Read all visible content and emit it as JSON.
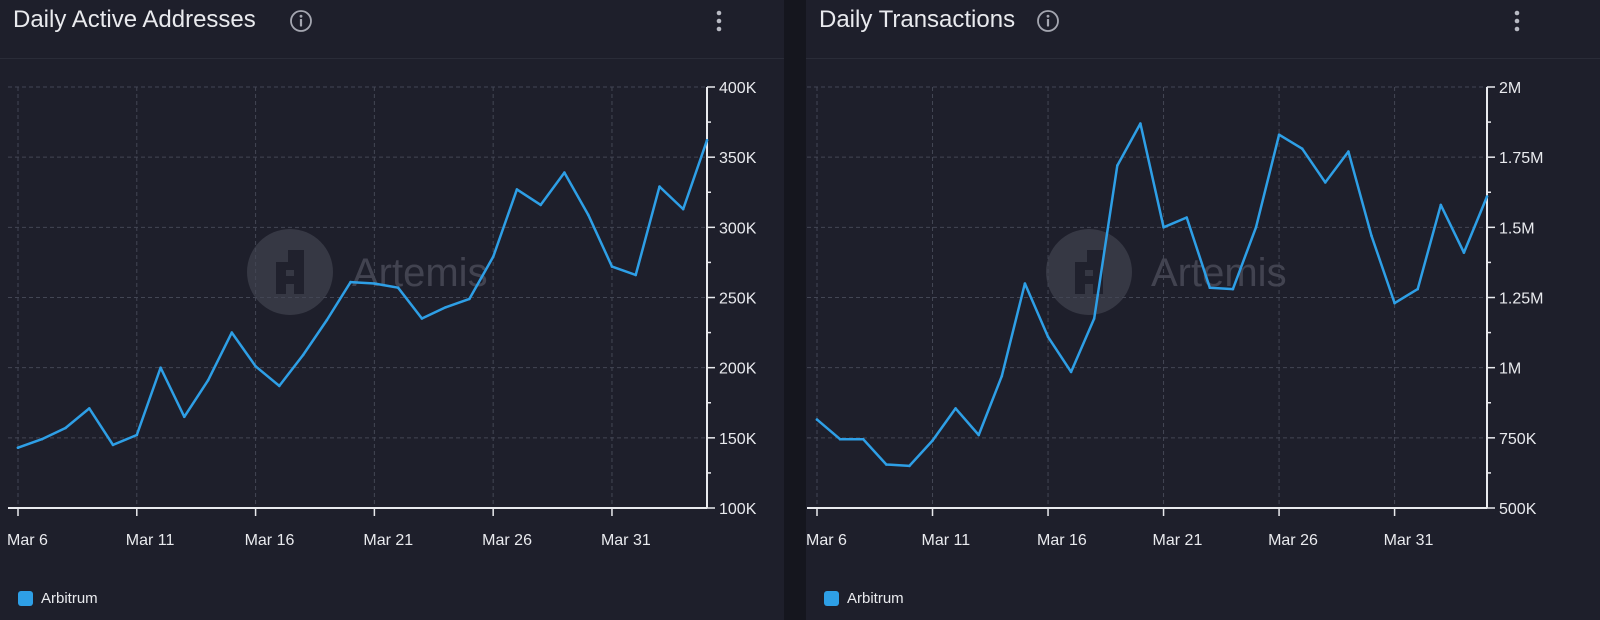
{
  "colors": {
    "series": "#2e9fe6",
    "grid": "#434654",
    "axis": "#e9eaee",
    "text": "#e9eaee",
    "watermark": "#4b4d5a"
  },
  "watermark_text": "Artemis",
  "panels": [
    {
      "title": "Daily Active Addresses",
      "info_icon": "info-icon",
      "menu_icon": "more-vertical-icon"
    },
    {
      "title": "Daily Transactions",
      "info_icon": "info-icon",
      "menu_icon": "more-vertical-icon"
    }
  ],
  "chart_data": [
    {
      "type": "line",
      "title": "Daily Active Addresses",
      "x": [
        "Mar 6",
        "Mar 7",
        "Mar 8",
        "Mar 9",
        "Mar 10",
        "Mar 11",
        "Mar 12",
        "Mar 13",
        "Mar 14",
        "Mar 15",
        "Mar 16",
        "Mar 17",
        "Mar 18",
        "Mar 19",
        "Mar 20",
        "Mar 21",
        "Mar 22",
        "Mar 23",
        "Mar 24",
        "Mar 25",
        "Mar 26",
        "Mar 27",
        "Mar 28",
        "Mar 29",
        "Mar 30",
        "Mar 31",
        "Apr 1",
        "Apr 2",
        "Apr 3",
        "Apr 4"
      ],
      "xticks": [
        "Mar 6",
        "Mar 11",
        "Mar 16",
        "Mar 21",
        "Mar 26",
        "Mar 31"
      ],
      "series": [
        {
          "name": "Arbitrum",
          "values": [
            143000,
            149000,
            157000,
            171000,
            145000,
            152000,
            200000,
            165000,
            191000,
            225000,
            201000,
            187000,
            209000,
            234000,
            261000,
            260000,
            257000,
            235000,
            243000,
            249000,
            279000,
            327000,
            316000,
            339000,
            309000,
            272000,
            266000,
            329000,
            313000,
            362000
          ]
        }
      ],
      "yticks": [
        "100K",
        "150K",
        "200K",
        "250K",
        "300K",
        "350K",
        "400K"
      ],
      "ytick_values": [
        100000,
        150000,
        200000,
        250000,
        300000,
        350000,
        400000
      ],
      "ylim": [
        100000,
        400000
      ],
      "grid": true,
      "legend": "bottom-left",
      "axis_side": "right"
    },
    {
      "type": "line",
      "title": "Daily Transactions",
      "x": [
        "Mar 6",
        "Mar 7",
        "Mar 8",
        "Mar 9",
        "Mar 10",
        "Mar 11",
        "Mar 12",
        "Mar 13",
        "Mar 14",
        "Mar 15",
        "Mar 16",
        "Mar 17",
        "Mar 18",
        "Mar 19",
        "Mar 20",
        "Mar 21",
        "Mar 22",
        "Mar 23",
        "Mar 24",
        "Mar 25",
        "Mar 26",
        "Mar 27",
        "Mar 28",
        "Mar 29",
        "Mar 30",
        "Mar 31",
        "Apr 1",
        "Apr 2",
        "Apr 3",
        "Apr 4"
      ],
      "xticks": [
        "Mar 6",
        "Mar 11",
        "Mar 16",
        "Mar 21",
        "Mar 26",
        "Mar 31"
      ],
      "series": [
        {
          "name": "Arbitrum",
          "values": [
            815000,
            745000,
            745000,
            655000,
            650000,
            740000,
            855000,
            760000,
            970000,
            1300000,
            1110000,
            985000,
            1175000,
            1720000,
            1870000,
            1500000,
            1535000,
            1285000,
            1280000,
            1500000,
            1830000,
            1780000,
            1660000,
            1770000,
            1470000,
            1230000,
            1280000,
            1580000,
            1410000,
            1610000
          ]
        }
      ],
      "yticks": [
        "500K",
        "750K",
        "1M",
        "1.25M",
        "1.5M",
        "1.75M",
        "2M"
      ],
      "ytick_values": [
        500000,
        750000,
        1000000,
        1250000,
        1500000,
        1750000,
        2000000
      ],
      "ylim": [
        500000,
        2000000
      ],
      "grid": true,
      "legend": "bottom-left",
      "axis_side": "right"
    }
  ]
}
